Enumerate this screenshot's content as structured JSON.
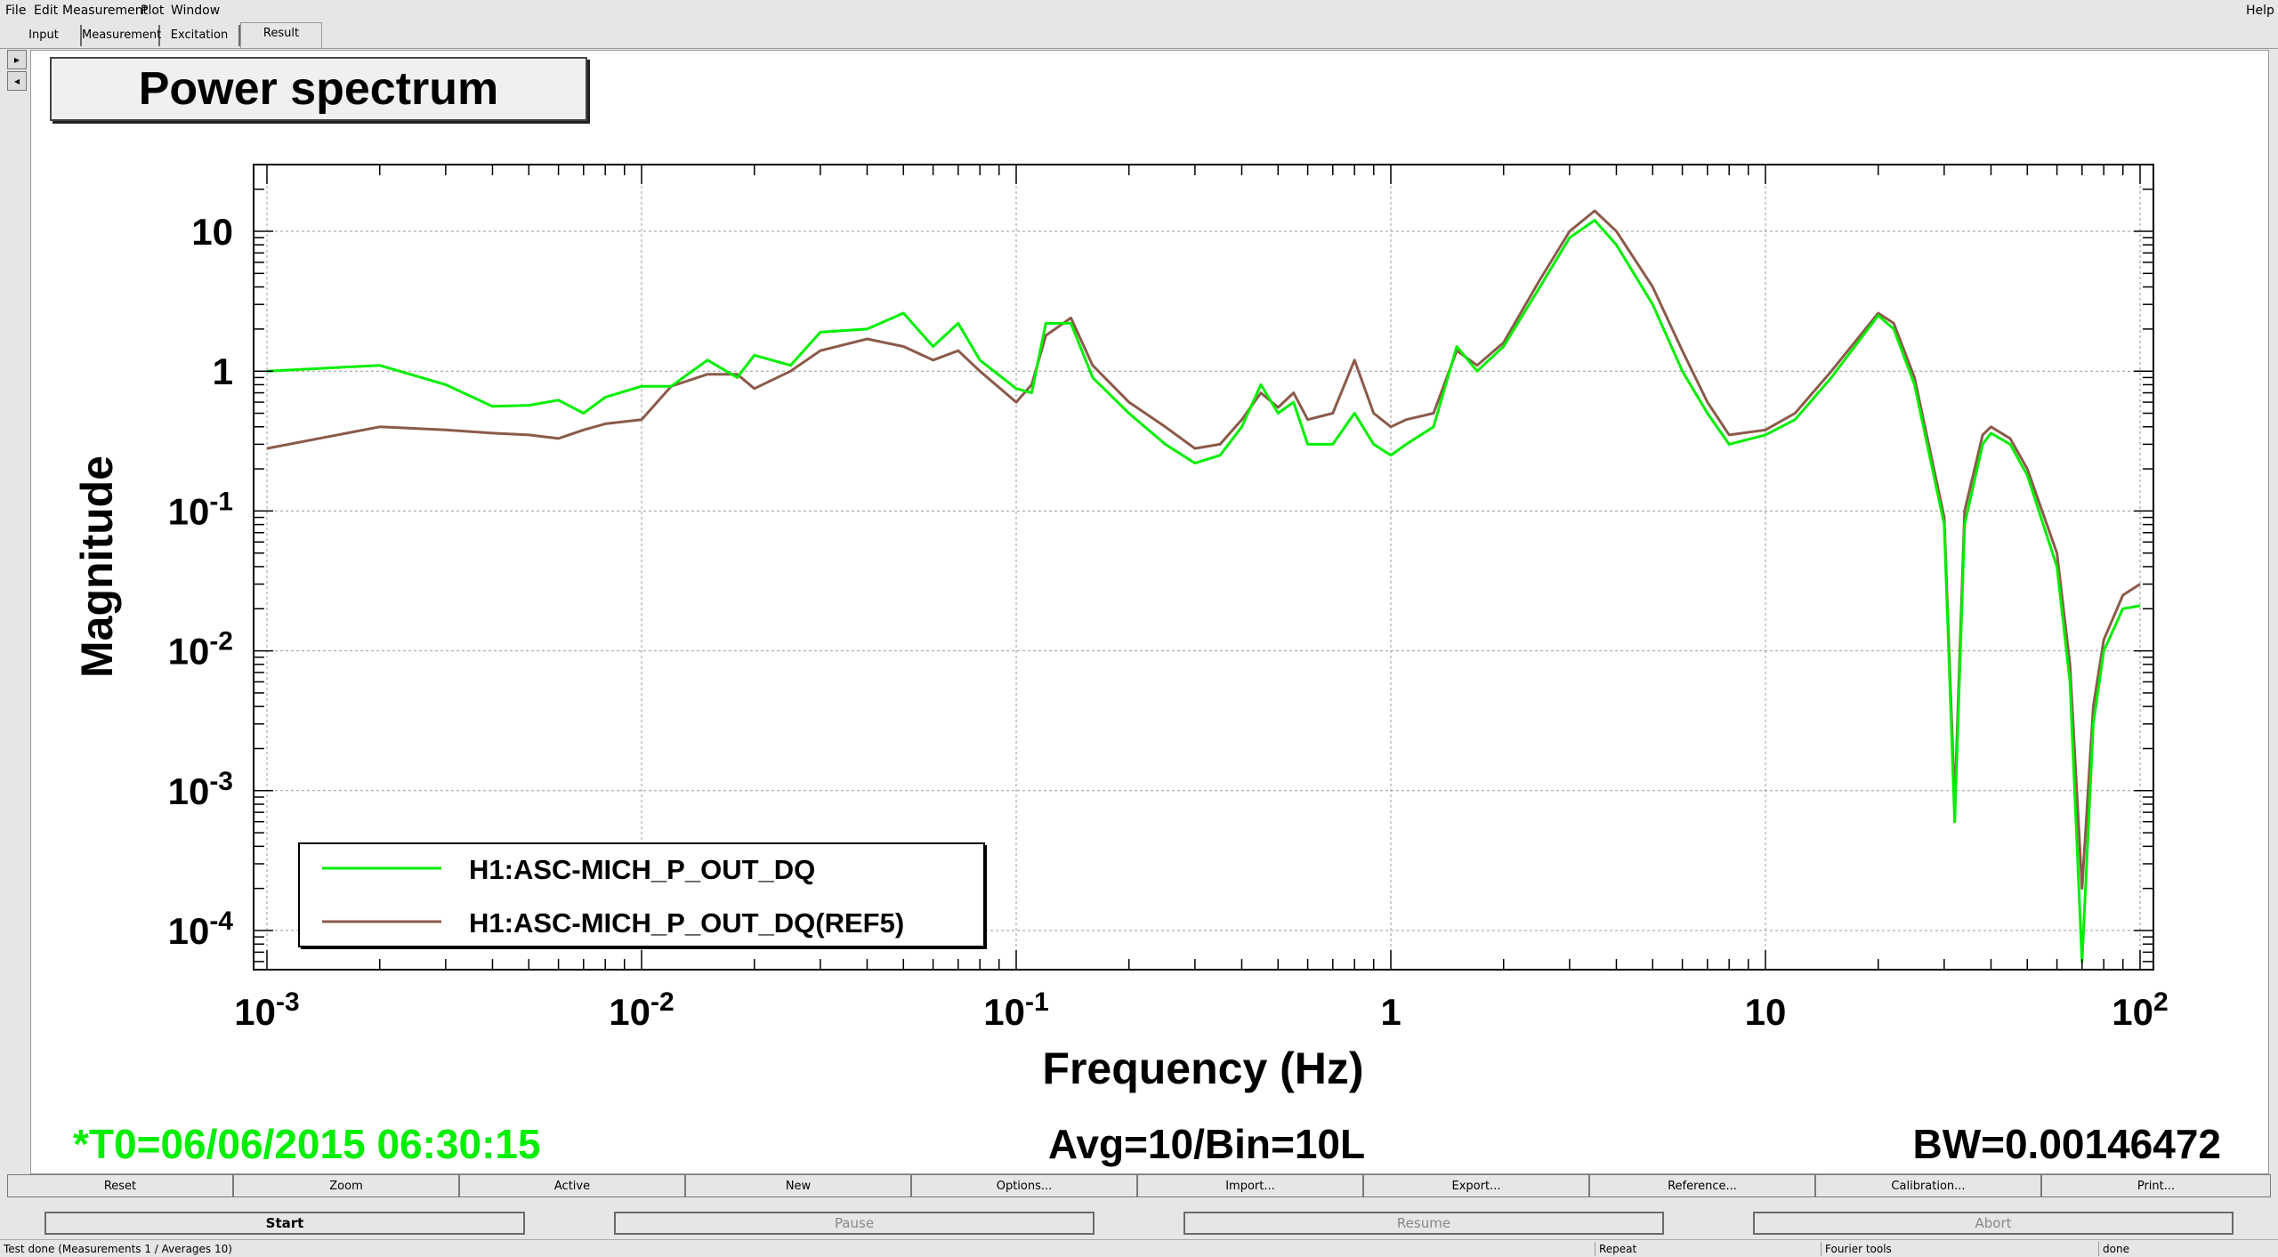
{
  "menu": {
    "file": "File",
    "edit": "Edit",
    "measurement": "Measurement",
    "plot": "Plot",
    "window": "Window",
    "help": "Help"
  },
  "tabs": [
    "Input",
    "Measurement",
    "Excitation",
    "Result"
  ],
  "plot": {
    "title": "Power spectrum",
    "footer_left": "*T0=06/06/2015 06:30:15",
    "footer_center": "Avg=10/Bin=10L",
    "footer_right": "BW=0.00146472"
  },
  "chart_data": {
    "type": "line",
    "xlabel": "Frequency (Hz)",
    "ylabel": "Magnitude",
    "xscale": "log",
    "yscale": "log",
    "xlim": [
      0.001,
      100
    ],
    "ylim": [
      5e-05,
      30
    ],
    "x_ticks": [
      {
        "value": 0.001,
        "base": "10",
        "exp": "-3"
      },
      {
        "value": 0.01,
        "base": "10",
        "exp": "-2"
      },
      {
        "value": 0.1,
        "base": "10",
        "exp": "-1"
      },
      {
        "value": 1,
        "base": "1",
        "exp": ""
      },
      {
        "value": 10,
        "base": "10",
        "exp": ""
      },
      {
        "value": 100,
        "base": "10",
        "exp": "2"
      }
    ],
    "y_ticks": [
      {
        "value": 10,
        "base": "10",
        "exp": ""
      },
      {
        "value": 1,
        "base": "1",
        "exp": ""
      },
      {
        "value": 0.1,
        "base": "10",
        "exp": "-1"
      },
      {
        "value": 0.01,
        "base": "10",
        "exp": "-2"
      },
      {
        "value": 0.001,
        "base": "10",
        "exp": "-3"
      },
      {
        "value": 0.0001,
        "base": "10",
        "exp": "-4"
      }
    ],
    "grid": true,
    "legend_position": "bottom-left",
    "series": [
      {
        "name": "H1:ASC-MICH_P_OUT_DQ",
        "color": "#00ee00",
        "points": [
          [
            0.001,
            1.0
          ],
          [
            0.002,
            1.1
          ],
          [
            0.003,
            0.8
          ],
          [
            0.004,
            0.56
          ],
          [
            0.005,
            0.57
          ],
          [
            0.006,
            0.62
          ],
          [
            0.007,
            0.5
          ],
          [
            0.008,
            0.65
          ],
          [
            0.01,
            0.78
          ],
          [
            0.012,
            0.78
          ],
          [
            0.015,
            1.2
          ],
          [
            0.018,
            0.9
          ],
          [
            0.02,
            1.3
          ],
          [
            0.025,
            1.1
          ],
          [
            0.03,
            1.9
          ],
          [
            0.04,
            2.0
          ],
          [
            0.05,
            2.6
          ],
          [
            0.06,
            1.5
          ],
          [
            0.07,
            2.2
          ],
          [
            0.08,
            1.2
          ],
          [
            0.1,
            0.75
          ],
          [
            0.11,
            0.7
          ],
          [
            0.12,
            2.2
          ],
          [
            0.14,
            2.2
          ],
          [
            0.16,
            0.9
          ],
          [
            0.2,
            0.5
          ],
          [
            0.25,
            0.3
          ],
          [
            0.3,
            0.22
          ],
          [
            0.35,
            0.25
          ],
          [
            0.4,
            0.4
          ],
          [
            0.45,
            0.8
          ],
          [
            0.5,
            0.5
          ],
          [
            0.55,
            0.6
          ],
          [
            0.6,
            0.3
          ],
          [
            0.7,
            0.3
          ],
          [
            0.8,
            0.5
          ],
          [
            0.9,
            0.3
          ],
          [
            1.0,
            0.25
          ],
          [
            1.1,
            0.3
          ],
          [
            1.3,
            0.4
          ],
          [
            1.5,
            1.5
          ],
          [
            1.7,
            1.0
          ],
          [
            2.0,
            1.5
          ],
          [
            2.5,
            4
          ],
          [
            3.0,
            9
          ],
          [
            3.5,
            12
          ],
          [
            4.0,
            8
          ],
          [
            5.0,
            3
          ],
          [
            6.0,
            1.0
          ],
          [
            7.0,
            0.5
          ],
          [
            8.0,
            0.3
          ],
          [
            10,
            0.35
          ],
          [
            12,
            0.45
          ],
          [
            15,
            0.9
          ],
          [
            20,
            2.5
          ],
          [
            22,
            2.0
          ],
          [
            25,
            0.8
          ],
          [
            30,
            0.08
          ],
          [
            32,
            0.0006
          ],
          [
            34,
            0.08
          ],
          [
            38,
            0.3
          ],
          [
            40,
            0.36
          ],
          [
            45,
            0.3
          ],
          [
            50,
            0.18
          ],
          [
            60,
            0.04
          ],
          [
            65,
            0.006
          ],
          [
            70,
            6e-05
          ],
          [
            75,
            0.003
          ],
          [
            80,
            0.01
          ],
          [
            90,
            0.02
          ],
          [
            100,
            0.021
          ]
        ]
      },
      {
        "name": "H1:ASC-MICH_P_OUT_DQ(REF5)",
        "color": "#8b5a4a",
        "points": [
          [
            0.001,
            0.28
          ],
          [
            0.002,
            0.4
          ],
          [
            0.003,
            0.38
          ],
          [
            0.004,
            0.36
          ],
          [
            0.005,
            0.35
          ],
          [
            0.006,
            0.33
          ],
          [
            0.007,
            0.38
          ],
          [
            0.008,
            0.42
          ],
          [
            0.01,
            0.45
          ],
          [
            0.012,
            0.78
          ],
          [
            0.015,
            0.95
          ],
          [
            0.018,
            0.95
          ],
          [
            0.02,
            0.75
          ],
          [
            0.025,
            1.0
          ],
          [
            0.03,
            1.4
          ],
          [
            0.04,
            1.7
          ],
          [
            0.05,
            1.5
          ],
          [
            0.06,
            1.2
          ],
          [
            0.07,
            1.4
          ],
          [
            0.08,
            1.0
          ],
          [
            0.1,
            0.6
          ],
          [
            0.11,
            0.8
          ],
          [
            0.12,
            1.8
          ],
          [
            0.14,
            2.4
          ],
          [
            0.16,
            1.1
          ],
          [
            0.2,
            0.6
          ],
          [
            0.25,
            0.4
          ],
          [
            0.3,
            0.28
          ],
          [
            0.35,
            0.3
          ],
          [
            0.4,
            0.45
          ],
          [
            0.45,
            0.7
          ],
          [
            0.5,
            0.55
          ],
          [
            0.55,
            0.7
          ],
          [
            0.6,
            0.45
          ],
          [
            0.7,
            0.5
          ],
          [
            0.8,
            1.2
          ],
          [
            0.9,
            0.5
          ],
          [
            1.0,
            0.4
          ],
          [
            1.1,
            0.45
          ],
          [
            1.3,
            0.5
          ],
          [
            1.5,
            1.4
          ],
          [
            1.7,
            1.1
          ],
          [
            2.0,
            1.6
          ],
          [
            2.5,
            4.5
          ],
          [
            3.0,
            10
          ],
          [
            3.5,
            14
          ],
          [
            4.0,
            10
          ],
          [
            5.0,
            4
          ],
          [
            6.0,
            1.4
          ],
          [
            7.0,
            0.6
          ],
          [
            8.0,
            0.35
          ],
          [
            10,
            0.38
          ],
          [
            12,
            0.5
          ],
          [
            15,
            1.0
          ],
          [
            20,
            2.6
          ],
          [
            22,
            2.2
          ],
          [
            25,
            0.9
          ],
          [
            30,
            0.09
          ],
          [
            32,
            0.0008
          ],
          [
            34,
            0.1
          ],
          [
            38,
            0.35
          ],
          [
            40,
            0.4
          ],
          [
            45,
            0.33
          ],
          [
            50,
            0.2
          ],
          [
            60,
            0.05
          ],
          [
            65,
            0.008
          ],
          [
            70,
            0.0002
          ],
          [
            75,
            0.004
          ],
          [
            80,
            0.012
          ],
          [
            90,
            0.025
          ],
          [
            100,
            0.03
          ]
        ]
      }
    ]
  },
  "buttons_row1": [
    "Reset",
    "Zoom",
    "Active",
    "New",
    "Options...",
    "Import...",
    "Export...",
    "Reference...",
    "Calibration...",
    "Print..."
  ],
  "buttons_row2": [
    "Start",
    "Pause",
    "Resume",
    "Abort"
  ],
  "status": {
    "message": "Test done (Measurements 1 / Averages 10)",
    "repeat": "Repeat",
    "tools": "Fourier tools",
    "state": "done"
  }
}
